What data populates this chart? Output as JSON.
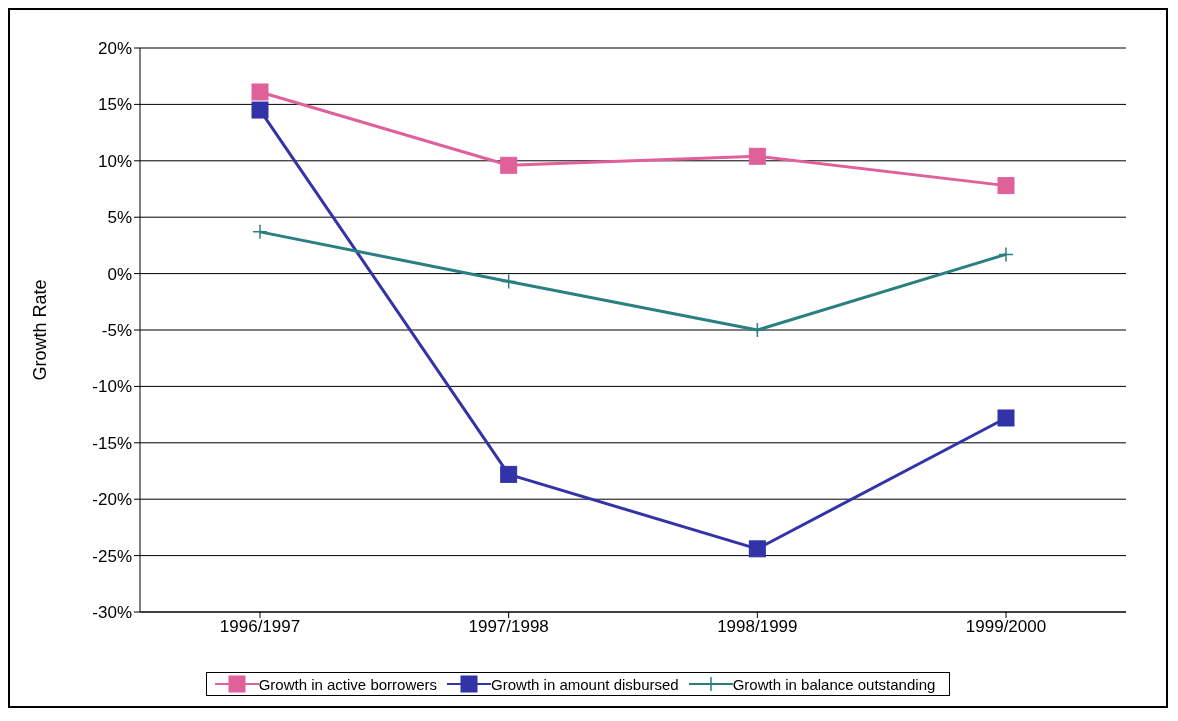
{
  "chart_data": {
    "type": "line",
    "ylabel": "Growth Rate",
    "categories": [
      "1996/1997",
      "1997/1998",
      "1998/1999",
      "1999/2000"
    ],
    "series": [
      {
        "name": "Growth in active borrowers",
        "color": "#e0609a",
        "marker": "square",
        "values": [
          16.1,
          9.6,
          10.4,
          7.8
        ]
      },
      {
        "name": "Growth in amount disbursed",
        "color": "#3333a8",
        "marker": "square",
        "values": [
          14.5,
          -17.8,
          -24.4,
          -12.8
        ]
      },
      {
        "name": "Growth in balance outstanding",
        "color": "#2a7f80",
        "marker": "cross",
        "values": [
          3.7,
          -0.7,
          -5.0,
          1.7
        ]
      }
    ],
    "ylim": [
      -30,
      20
    ],
    "yticks": [
      {
        "value": -30,
        "label": "-30%"
      },
      {
        "value": -25,
        "label": "-25%"
      },
      {
        "value": -20,
        "label": "-20%"
      },
      {
        "value": -15,
        "label": "-15%"
      },
      {
        "value": -10,
        "label": "-10%"
      },
      {
        "value": -5,
        "label": "-5%"
      },
      {
        "value": 0,
        "label": "0%"
      },
      {
        "value": 5,
        "label": "5%"
      },
      {
        "value": 10,
        "label": "10%"
      },
      {
        "value": 15,
        "label": "15%"
      },
      {
        "value": 20,
        "label": "20%"
      }
    ],
    "grid": "y",
    "legend": "bottom",
    "line_style": "solid"
  }
}
